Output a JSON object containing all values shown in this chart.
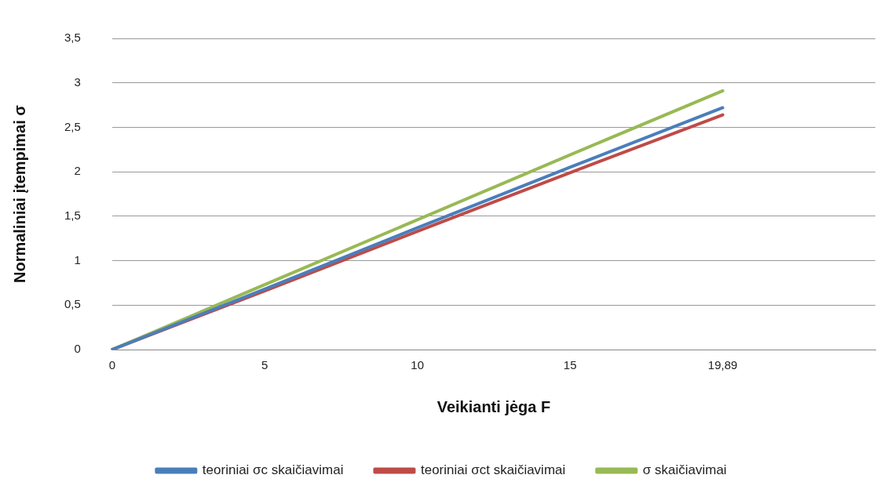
{
  "chart_data": {
    "type": "line",
    "xlabel": "Veikianti jėga F",
    "ylabel": "Normaliniai įtempimai σ",
    "categories": [
      "0",
      "5",
      "10",
      "15",
      "19,89",
      null
    ],
    "series": [
      {
        "name": "teoriniai σc skaičiavimai",
        "color": "#4a7ebb",
        "values": [
          0,
          0.68,
          1.37,
          2.05,
          2.72,
          null
        ]
      },
      {
        "name": "teoriniai σct skaičiavimai",
        "color": "#be4b48",
        "values": [
          0,
          0.66,
          1.33,
          1.99,
          2.64,
          null
        ]
      },
      {
        "name": "σ skaičiavimai",
        "color": "#98b954",
        "values": [
          0,
          0.73,
          1.46,
          2.19,
          2.91,
          null
        ]
      }
    ],
    "ylim": [
      0,
      3.5
    ],
    "yticks": [
      0,
      {
        "value": 0.5,
        "label": "0,5"
      },
      1,
      {
        "value": 1.5,
        "label": "1,5"
      },
      2,
      {
        "value": 2.5,
        "label": "2,5"
      },
      3,
      {
        "value": 3.5,
        "label": "3,5"
      }
    ],
    "grid": "y",
    "legend": "bottom",
    "marker": "none",
    "line_style": "solid"
  }
}
